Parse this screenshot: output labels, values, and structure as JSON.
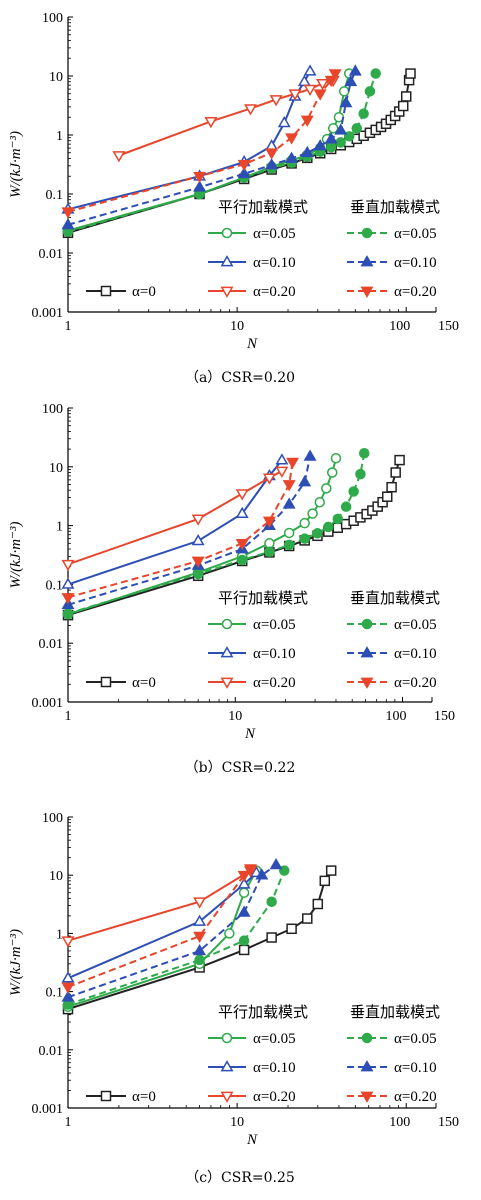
{
  "chart_data": [
    {
      "type": "line",
      "caption": "（a）CSR=0.20",
      "xlabel": "N",
      "ylabel": "W/(kJ·m⁻³)",
      "xscale": "log",
      "yscale": "log",
      "xlim": [
        1,
        150
      ],
      "ylim": [
        0.001,
        100
      ],
      "xticks": [
        "1",
        "10",
        "100",
        "150"
      ],
      "yticks": [
        "0.001",
        "0.01",
        "0.1",
        "1",
        "10",
        "100"
      ],
      "legend": {
        "parallel_header": "平行加载模式",
        "vertical_header": "垂直加载模式",
        "alpha0": "α=0",
        "a005": "α=0.05",
        "a010": "α=0.10",
        "a020": "α=0.20"
      },
      "series": [
        {
          "name": "α=0",
          "mode": "baseline",
          "color": "#222222",
          "marker": "square",
          "dash": false,
          "x": [
            1,
            6,
            11,
            16,
            21,
            26,
            31,
            36,
            41,
            46,
            51,
            56,
            61,
            66,
            71,
            76,
            81,
            86,
            91,
            96,
            100,
            104,
            106
          ],
          "y": [
            0.022,
            0.1,
            0.18,
            0.26,
            0.33,
            0.41,
            0.49,
            0.58,
            0.67,
            0.76,
            0.86,
            0.97,
            1.09,
            1.22,
            1.37,
            1.55,
            1.8,
            2.1,
            2.5,
            3.1,
            4.5,
            8.5,
            11
          ]
        },
        {
          "name": "α=0.05",
          "mode": "parallel",
          "color": "#2eaa4a",
          "marker": "circle",
          "dash": false,
          "x": [
            1,
            6,
            11,
            16,
            21,
            26,
            31,
            34,
            37,
            40,
            43,
            46
          ],
          "y": [
            0.024,
            0.1,
            0.19,
            0.29,
            0.37,
            0.46,
            0.6,
            0.85,
            1.3,
            2.0,
            5.5,
            11
          ]
        },
        {
          "name": "α=0.05",
          "mode": "vertical",
          "color": "#2eaa4a",
          "marker": "filled-circle",
          "dash": true,
          "x": [
            1,
            6,
            11,
            16,
            21,
            26,
            31,
            36,
            41,
            46,
            51,
            56,
            61,
            66
          ],
          "y": [
            0.023,
            0.1,
            0.19,
            0.27,
            0.34,
            0.43,
            0.52,
            0.62,
            0.75,
            0.95,
            1.3,
            2.3,
            5.5,
            11
          ]
        },
        {
          "name": "α=0.10",
          "mode": "parallel",
          "color": "#2d4fb5",
          "marker": "triangle",
          "dash": false,
          "x": [
            1,
            6,
            11,
            16,
            19,
            22,
            25,
            27
          ],
          "y": [
            0.055,
            0.2,
            0.35,
            0.65,
            1.6,
            4.5,
            8,
            12
          ]
        },
        {
          "name": "α=0.10",
          "mode": "vertical",
          "color": "#2d4fb5",
          "marker": "filled-triangle",
          "dash": true,
          "x": [
            1,
            6,
            11,
            16,
            21,
            26,
            31,
            36,
            41,
            44,
            47,
            50
          ],
          "y": [
            0.03,
            0.13,
            0.22,
            0.31,
            0.4,
            0.5,
            0.65,
            0.85,
            1.2,
            3.5,
            8,
            12
          ]
        },
        {
          "name": "α=0.20",
          "mode": "parallel",
          "color": "#e8452b",
          "marker": "inv-triangle",
          "dash": false,
          "x": [
            2,
            7,
            12,
            17,
            22,
            27,
            32,
            37
          ],
          "y": [
            0.45,
            1.7,
            2.8,
            4.0,
            5.0,
            6.0,
            7.5,
            8.5
          ]
        },
        {
          "name": "α=0.20",
          "mode": "vertical",
          "color": "#e8452b",
          "marker": "filled-inv-triangle",
          "dash": true,
          "x": [
            1,
            6,
            11,
            16,
            21,
            26,
            31,
            36,
            38
          ],
          "y": [
            0.05,
            0.2,
            0.32,
            0.5,
            0.9,
            1.8,
            5,
            8.5,
            11
          ]
        }
      ]
    },
    {
      "type": "line",
      "caption": "（b）CSR=0.22",
      "xlabel": "N",
      "ylabel": "W/(kJ·m⁻³)",
      "xscale": "log",
      "yscale": "log",
      "xlim": [
        1,
        150
      ],
      "ylim": [
        0.001,
        100
      ],
      "xticks": [
        "1",
        "10",
        "100",
        "150"
      ],
      "yticks": [
        "0.001",
        "0.01",
        "0.1",
        "1",
        "10",
        "100"
      ],
      "legend": {
        "parallel_header": "平行加载模式",
        "vertical_header": "垂直加载模式",
        "alpha0": "α=0",
        "a005": "α=0.05",
        "a010": "α=0.10",
        "a020": "α=0.20"
      },
      "series": [
        {
          "name": "α=0",
          "mode": "baseline",
          "color": "#222222",
          "marker": "square",
          "dash": false,
          "x": [
            1,
            6,
            11,
            16,
            21,
            26,
            31,
            36,
            41,
            46,
            51,
            56,
            61,
            66,
            71,
            76,
            81,
            86,
            91,
            96
          ],
          "y": [
            0.03,
            0.14,
            0.25,
            0.35,
            0.45,
            0.56,
            0.67,
            0.79,
            0.92,
            1.06,
            1.21,
            1.38,
            1.57,
            1.8,
            2.1,
            2.5,
            3.1,
            4.5,
            8,
            13
          ]
        },
        {
          "name": "α=0.05",
          "mode": "parallel",
          "color": "#2eaa4a",
          "marker": "circle",
          "dash": false,
          "x": [
            1,
            6,
            11,
            16,
            21,
            26,
            29,
            32,
            35,
            38,
            40
          ],
          "y": [
            0.031,
            0.16,
            0.3,
            0.5,
            0.75,
            1.1,
            1.6,
            2.5,
            4.3,
            8,
            14
          ]
        },
        {
          "name": "α=0.05",
          "mode": "vertical",
          "color": "#2eaa4a",
          "marker": "filled-circle",
          "dash": true,
          "x": [
            1,
            6,
            11,
            16,
            21,
            26,
            31,
            36,
            41,
            46,
            51,
            56,
            59
          ],
          "y": [
            0.032,
            0.15,
            0.26,
            0.36,
            0.47,
            0.6,
            0.74,
            0.95,
            1.3,
            2.1,
            3.8,
            7.5,
            17
          ]
        },
        {
          "name": "α=0.10",
          "mode": "parallel",
          "color": "#2d4fb5",
          "marker": "triangle",
          "dash": false,
          "x": [
            1,
            6,
            11,
            16,
            19
          ],
          "y": [
            0.1,
            0.55,
            1.6,
            7,
            13
          ]
        },
        {
          "name": "α=0.10",
          "mode": "vertical",
          "color": "#2d4fb5",
          "marker": "filled-triangle",
          "dash": true,
          "x": [
            1,
            6,
            11,
            16,
            21,
            26,
            28
          ],
          "y": [
            0.045,
            0.21,
            0.4,
            1.0,
            2.3,
            5.5,
            15
          ]
        },
        {
          "name": "α=0.20",
          "mode": "parallel",
          "color": "#e8452b",
          "marker": "inv-triangle",
          "dash": false,
          "x": [
            1,
            6,
            11,
            16,
            19
          ],
          "y": [
            0.22,
            1.3,
            3.5,
            6.5,
            8.5
          ]
        },
        {
          "name": "α=0.20",
          "mode": "vertical",
          "color": "#e8452b",
          "marker": "filled-inv-triangle",
          "dash": true,
          "x": [
            1,
            6,
            11,
            16,
            21,
            22
          ],
          "y": [
            0.06,
            0.25,
            0.5,
            1.2,
            5,
            12
          ]
        }
      ]
    },
    {
      "type": "line",
      "caption": "（c）CSR=0.25",
      "xlabel": "N",
      "ylabel": "W/(kJ·m⁻³)",
      "xscale": "log",
      "yscale": "log",
      "xlim": [
        1,
        150
      ],
      "ylim": [
        0.001,
        100
      ],
      "xticks": [
        "1",
        "10",
        "100",
        "150"
      ],
      "yticks": [
        "0.001",
        "0.01",
        "0.1",
        "1",
        "10",
        "100"
      ],
      "legend": {
        "parallel_header": "平行加载模式",
        "vertical_header": "垂直加载模式",
        "alpha0": "α=0",
        "a005": "α=0.05",
        "a010": "α=0.10",
        "a020": "α=0.20"
      },
      "series": [
        {
          "name": "α=0",
          "mode": "baseline",
          "color": "#222222",
          "marker": "square",
          "dash": false,
          "x": [
            1,
            6,
            11,
            16,
            21,
            26,
            30,
            33,
            36
          ],
          "y": [
            0.05,
            0.26,
            0.52,
            0.85,
            1.2,
            1.8,
            3.2,
            8,
            12
          ]
        },
        {
          "name": "α=0.05",
          "mode": "parallel",
          "color": "#2eaa4a",
          "marker": "circle",
          "dash": false,
          "x": [
            1,
            6,
            9,
            11,
            13
          ],
          "y": [
            0.055,
            0.3,
            1.0,
            5,
            12
          ]
        },
        {
          "name": "α=0.05",
          "mode": "vertical",
          "color": "#2eaa4a",
          "marker": "filled-circle",
          "dash": true,
          "x": [
            1,
            6,
            11,
            16,
            19
          ],
          "y": [
            0.06,
            0.35,
            0.75,
            3.5,
            12
          ]
        },
        {
          "name": "α=0.10",
          "mode": "parallel",
          "color": "#2d4fb5",
          "marker": "triangle",
          "dash": false,
          "x": [
            1,
            6,
            11,
            13
          ],
          "y": [
            0.17,
            1.6,
            7,
            11
          ]
        },
        {
          "name": "α=0.10",
          "mode": "vertical",
          "color": "#2d4fb5",
          "marker": "filled-triangle",
          "dash": true,
          "x": [
            1,
            6,
            11,
            14,
            17
          ],
          "y": [
            0.08,
            0.5,
            2.3,
            10,
            15
          ]
        },
        {
          "name": "α=0.20",
          "mode": "parallel",
          "color": "#e8452b",
          "marker": "inv-triangle",
          "dash": false,
          "x": [
            1,
            6,
            12
          ],
          "y": [
            0.75,
            3.5,
            12
          ]
        },
        {
          "name": "α=0.20",
          "mode": "vertical",
          "color": "#e8452b",
          "marker": "filled-inv-triangle",
          "dash": true,
          "x": [
            1,
            6,
            11,
            12
          ],
          "y": [
            0.12,
            0.9,
            10,
            13
          ]
        }
      ]
    }
  ]
}
